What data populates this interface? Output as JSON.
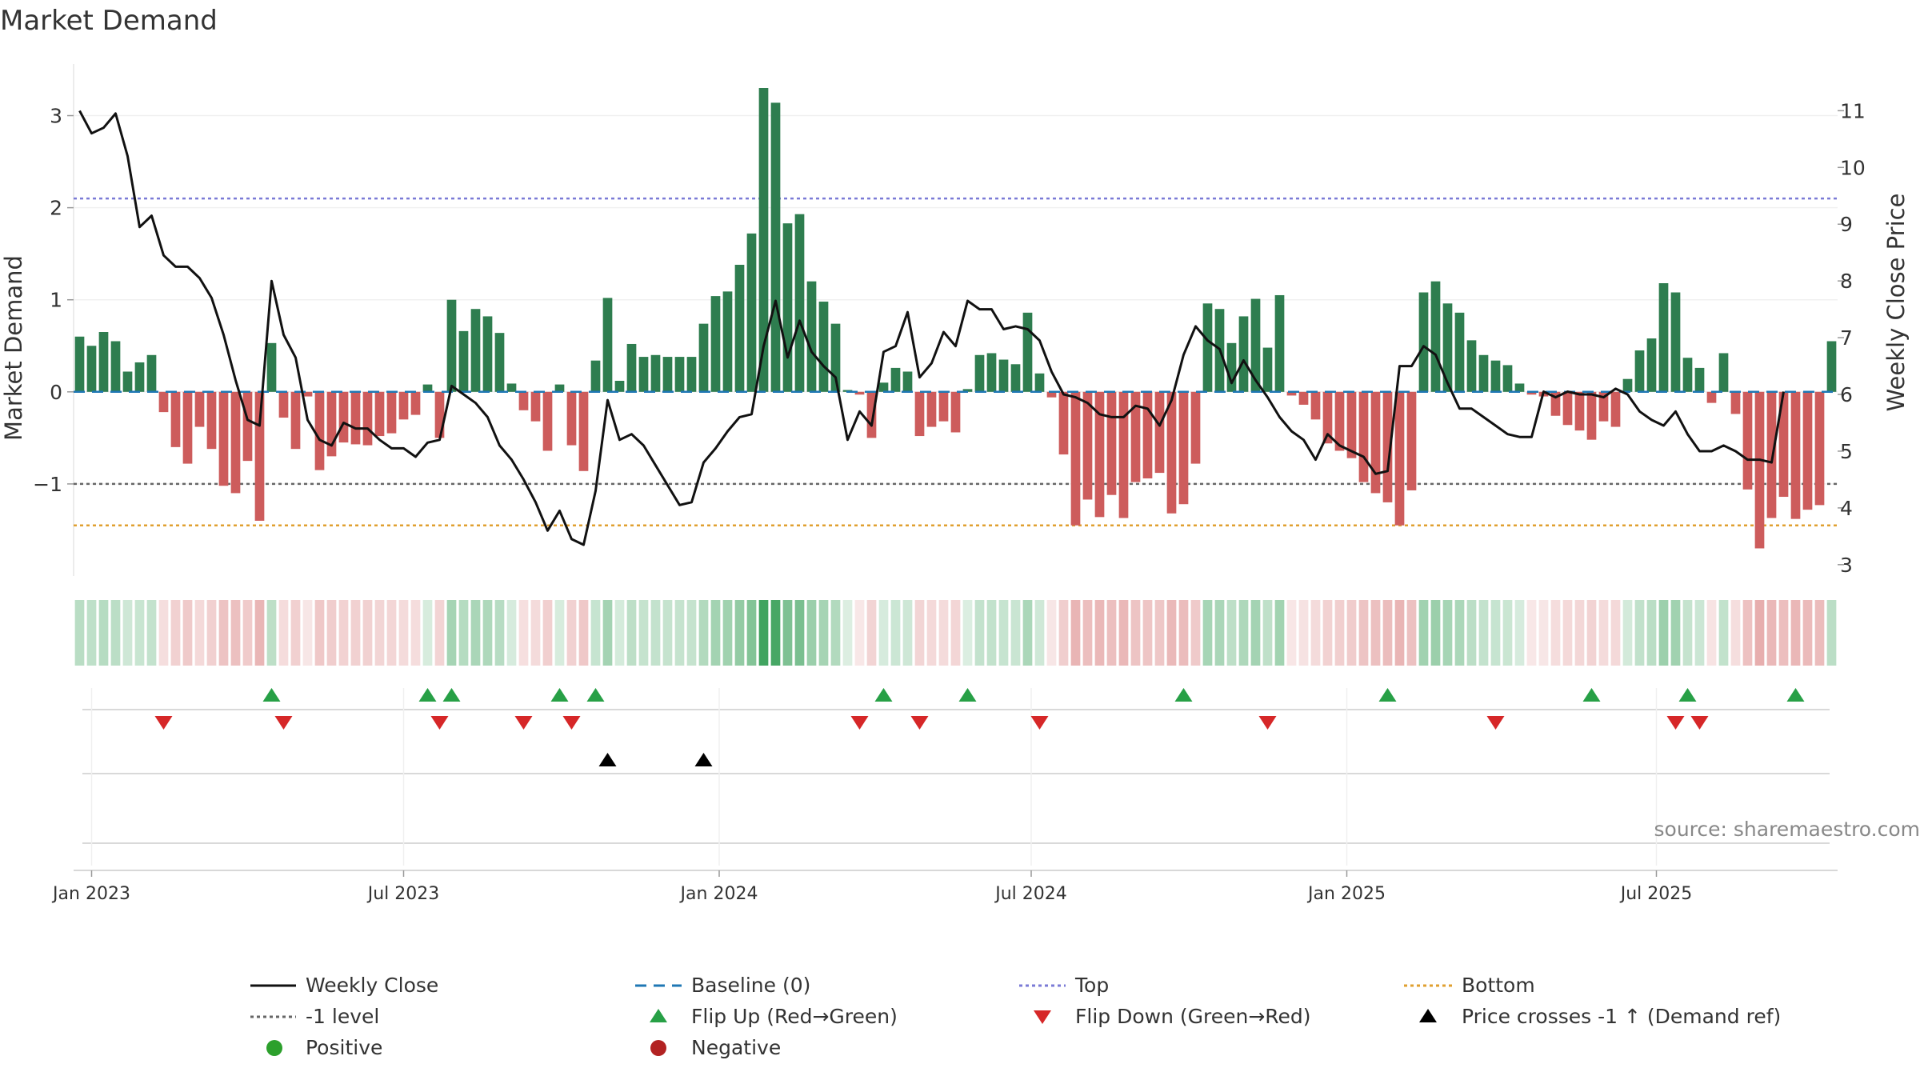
{
  "title": "Market Demand",
  "source": "source: sharemaestro.com",
  "colors": {
    "positive": "#2e7d4f",
    "negative": "#cd5c5c",
    "line": "#111111",
    "baseline": "#1f77b4",
    "top": "#7b7bd6",
    "bottom": "#e0a030",
    "minus1": "#666666",
    "flip_up": "#27a046",
    "flip_down": "#d62728",
    "cross": "#000000",
    "pos_dot": "#2ca02c",
    "neg_dot": "#b22222"
  },
  "chart_data": {
    "type": "bar",
    "title": "Market Demand",
    "ylabel": "Market Demand",
    "y2label": "Weekly Close Price",
    "ylim": [
      -2.0,
      3.3
    ],
    "y2lim": [
      2.8,
      11.4
    ],
    "yticks": [
      -1,
      0,
      1,
      2,
      3
    ],
    "ytick_labels": [
      "−1",
      "0",
      "1",
      "2",
      "3"
    ],
    "y2ticks": [
      3,
      4,
      5,
      6,
      7,
      8,
      9,
      10,
      11
    ],
    "x_start_week_offset": -1,
    "xticks": [
      {
        "label": "Jan 2023",
        "week": 0
      },
      {
        "label": "Jul 2023",
        "week": 26
      },
      {
        "label": "Jan 2024",
        "week": 52.3
      },
      {
        "label": "Jul 2024",
        "week": 78.3
      },
      {
        "label": "Jan 2025",
        "week": 104.6
      },
      {
        "label": "Jul 2025",
        "week": 130.4
      }
    ],
    "reference_lines": {
      "baseline": 0,
      "top": 2.1,
      "bottom": -1.45,
      "minus1": -1
    },
    "demand": [
      0.6,
      0.5,
      0.65,
      0.55,
      0.22,
      0.32,
      0.4,
      -0.22,
      -0.6,
      -0.78,
      -0.38,
      -0.62,
      -1.02,
      -1.1,
      -0.75,
      -1.4,
      0.53,
      -0.28,
      -0.62,
      -0.05,
      -0.85,
      -0.7,
      -0.55,
      -0.57,
      -0.58,
      -0.48,
      -0.45,
      -0.3,
      -0.25,
      0.08,
      -0.5,
      1.0,
      0.66,
      0.9,
      0.82,
      0.64,
      0.09,
      -0.2,
      -0.32,
      -0.64,
      0.08,
      -0.58,
      -0.86,
      0.34,
      1.02,
      0.12,
      0.52,
      0.38,
      0.4,
      0.38,
      0.38,
      0.38,
      0.74,
      1.04,
      1.09,
      1.38,
      1.72,
      3.3,
      3.14,
      1.83,
      1.93,
      1.2,
      0.98,
      0.74,
      0.02,
      -0.03,
      -0.5,
      0.1,
      0.26,
      0.22,
      -0.48,
      -0.38,
      -0.32,
      -0.44,
      0.03,
      0.4,
      0.42,
      0.35,
      0.3,
      0.86,
      0.2,
      -0.06,
      -0.68,
      -1.45,
      -1.17,
      -1.36,
      -1.12,
      -1.37,
      -0.98,
      -0.94,
      -0.88,
      -1.32,
      -1.22,
      -0.78,
      0.96,
      0.9,
      0.53,
      0.82,
      1.01,
      0.48,
      1.05,
      -0.04,
      -0.14,
      -0.3,
      -0.56,
      -0.64,
      -0.72,
      -0.98,
      -1.1,
      -1.2,
      -1.45,
      -1.07,
      1.08,
      1.2,
      0.96,
      0.86,
      0.56,
      0.4,
      0.34,
      0.29,
      0.09,
      -0.03,
      -0.05,
      -0.26,
      -0.36,
      -0.42,
      -0.52,
      -0.32,
      -0.38,
      0.14,
      0.45,
      0.58,
      1.18,
      1.08,
      0.37,
      0.26,
      -0.12,
      0.42,
      -0.24,
      -1.06,
      -1.7,
      -1.37,
      -1.14,
      -1.38,
      -1.28,
      -1.23,
      0.55
    ],
    "weekly_close": [
      11.0,
      10.6,
      10.7,
      10.95,
      10.2,
      8.95,
      9.15,
      8.45,
      8.25,
      8.25,
      8.05,
      7.7,
      7.05,
      6.25,
      5.55,
      5.45,
      8.0,
      7.05,
      6.65,
      5.55,
      5.2,
      5.1,
      5.5,
      5.4,
      5.4,
      5.2,
      5.05,
      5.05,
      4.9,
      5.15,
      5.2,
      6.15,
      6.0,
      5.85,
      5.6,
      5.1,
      4.85,
      4.5,
      4.1,
      3.6,
      3.95,
      3.45,
      3.35,
      4.3,
      5.9,
      5.2,
      5.3,
      5.1,
      4.75,
      4.4,
      4.05,
      4.1,
      4.8,
      5.05,
      5.35,
      5.6,
      5.65,
      6.85,
      7.65,
      6.65,
      7.3,
      6.75,
      6.5,
      6.3,
      5.2,
      5.7,
      5.45,
      6.75,
      6.85,
      7.45,
      6.3,
      6.55,
      7.1,
      6.85,
      7.65,
      7.5,
      7.5,
      7.15,
      7.2,
      7.15,
      6.95,
      6.4,
      6.0,
      5.95,
      5.85,
      5.65,
      5.6,
      5.6,
      5.8,
      5.75,
      5.45,
      5.9,
      6.7,
      7.2,
      6.95,
      6.8,
      6.2,
      6.6,
      6.25,
      5.95,
      5.6,
      5.35,
      5.2,
      4.85,
      5.3,
      5.1,
      5.0,
      4.9,
      4.6,
      4.65,
      6.5,
      6.5,
      6.85,
      6.7,
      6.2,
      5.75,
      5.75,
      5.6,
      5.45,
      5.3,
      5.25,
      5.25,
      6.05,
      5.95,
      6.05,
      6.0,
      6.0,
      5.95,
      6.1,
      6.0,
      5.7,
      5.55,
      5.45,
      5.7,
      5.3,
      5.0,
      5.0,
      5.1,
      5.0,
      4.85,
      4.85,
      4.8,
      6.05
    ],
    "flip_up_weeks": [
      15,
      28,
      30,
      39,
      42,
      66,
      73,
      91,
      108,
      125,
      133,
      142
    ],
    "flip_down_weeks": [
      6,
      16,
      29,
      36,
      40,
      64,
      69,
      79,
      98,
      117,
      132,
      134
    ],
    "price_cross_weeks": [
      43,
      51
    ],
    "legend": [
      {
        "key": "close",
        "label": "Weekly Close"
      },
      {
        "key": "baseline",
        "label": "Baseline (0)"
      },
      {
        "key": "top",
        "label": "Top"
      },
      {
        "key": "bottom",
        "label": "Bottom"
      },
      {
        "key": "minus1",
        "label": "-1 level"
      },
      {
        "key": "flip_up",
        "label": "Flip Up (Red→Green)"
      },
      {
        "key": "flip_down",
        "label": "Flip Down (Green→Red)"
      },
      {
        "key": "cross",
        "label": "Price crosses -1 ↑ (Demand ref)"
      },
      {
        "key": "positive",
        "label": "Positive"
      },
      {
        "key": "negative",
        "label": "Negative"
      }
    ]
  }
}
